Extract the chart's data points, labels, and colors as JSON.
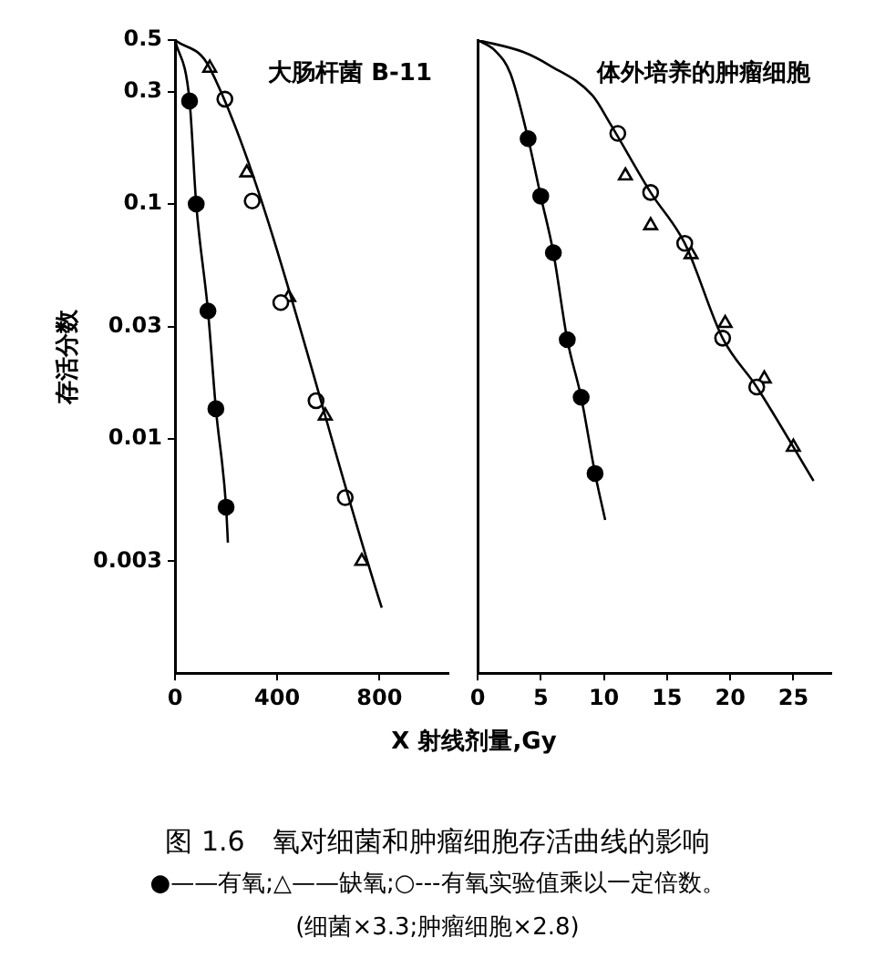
{
  "chart_data": [
    {
      "type": "scatter",
      "title": "大肠杆菌 B-11",
      "ylabel": "存活分数",
      "xlabel": "X 射线剂量,Gy",
      "log": "y",
      "xlim": [
        0,
        1070
      ],
      "xticks": [
        0,
        400,
        800
      ],
      "ylim": [
        0.001,
        0.5
      ],
      "yticks": [
        0.5,
        0.3,
        0.1,
        0.03,
        0.01,
        0.003
      ],
      "grid": false,
      "annotations": [
        "图 1.6　氧对细菌和肿瘤细胞存活曲线的影响",
        "●——有氧;△——缺氧;○---有氧实验值乘以一定倍数。",
        "(细菌×3.3;肿瘤细胞×2.8)"
      ],
      "series": [
        {
          "type": "line",
          "color": "#000000",
          "marker": "none",
          "x": [
            0,
            57,
            83,
            129,
            160,
            200,
            207
          ],
          "values": [
            0.5,
            0.275,
            0.1,
            0.035,
            0.0134,
            0.0051,
            0.0036
          ]
        },
        {
          "type": "line",
          "color": "#000000",
          "marker": "none",
          "x": [
            0,
            136,
            809
          ],
          "values": [
            0.5,
            0.38,
            0.0019
          ]
        },
        {
          "type": "scatter",
          "color": "#000000",
          "marker": "circle",
          "x": [
            57,
            83,
            129,
            160,
            200
          ],
          "values": [
            0.275,
            0.1,
            0.035,
            0.0134,
            0.0051
          ]
        },
        {
          "type": "scatter",
          "color": "#ffffff",
          "marker": "circle",
          "x": [
            195,
            302,
            414,
            552,
            666
          ],
          "values": [
            0.28,
            0.103,
            0.038,
            0.0145,
            0.0056
          ]
        },
        {
          "type": "scatter",
          "color": "#ffffff",
          "marker": "triangle",
          "x": [
            136,
            281,
            445,
            588,
            731
          ],
          "values": [
            0.38,
            0.136,
            0.04,
            0.0125,
            0.003
          ]
        }
      ]
    },
    {
      "type": "scatter",
      "title": "体外培养的肿瘤细胞",
      "log": "y",
      "xlim": [
        0,
        28
      ],
      "xticks": [
        0,
        5,
        10,
        15,
        20,
        25
      ],
      "ylim": [
        0.001,
        0.5
      ],
      "grid": false,
      "tick_labels": "x",
      "series": [
        {
          "type": "line",
          "color": "#000000",
          "marker": "none",
          "x": [
            0,
            1.4,
            2.6,
            4,
            5,
            6,
            7.1,
            8.2,
            9.3,
            10.1
          ],
          "values": [
            0.5,
            0.45,
            0.36,
            0.19,
            0.108,
            0.062,
            0.0264,
            0.015,
            0.0071,
            0.0045
          ]
        },
        {
          "type": "line",
          "color": "#000000",
          "marker": "none",
          "x": [
            0,
            3.6,
            5.7,
            9.1,
            10.5,
            13.7,
            16.4,
            19.4,
            22.1,
            26.6
          ],
          "values": [
            0.5,
            0.445,
            0.39,
            0.29,
            0.22,
            0.112,
            0.068,
            0.0268,
            0.0166,
            0.0066
          ]
        },
        {
          "type": "scatter",
          "color": "#000000",
          "marker": "circle",
          "x": [
            4,
            5,
            6,
            7.1,
            8.2,
            9.3
          ],
          "values": [
            0.19,
            0.108,
            0.062,
            0.0264,
            0.015,
            0.0071
          ]
        },
        {
          "type": "scatter",
          "color": "#ffffff",
          "marker": "circle",
          "x": [
            11.1,
            13.7,
            16.4,
            19.4,
            22.1
          ],
          "values": [
            0.2,
            0.112,
            0.068,
            0.0268,
            0.0166
          ]
        },
        {
          "type": "scatter",
          "color": "#ffffff",
          "marker": "triangle",
          "x": [
            11.7,
            13.7,
            16.9,
            19.6,
            22.7,
            25
          ],
          "values": [
            0.132,
            0.081,
            0.061,
            0.031,
            0.018,
            0.0092
          ]
        }
      ]
    }
  ]
}
